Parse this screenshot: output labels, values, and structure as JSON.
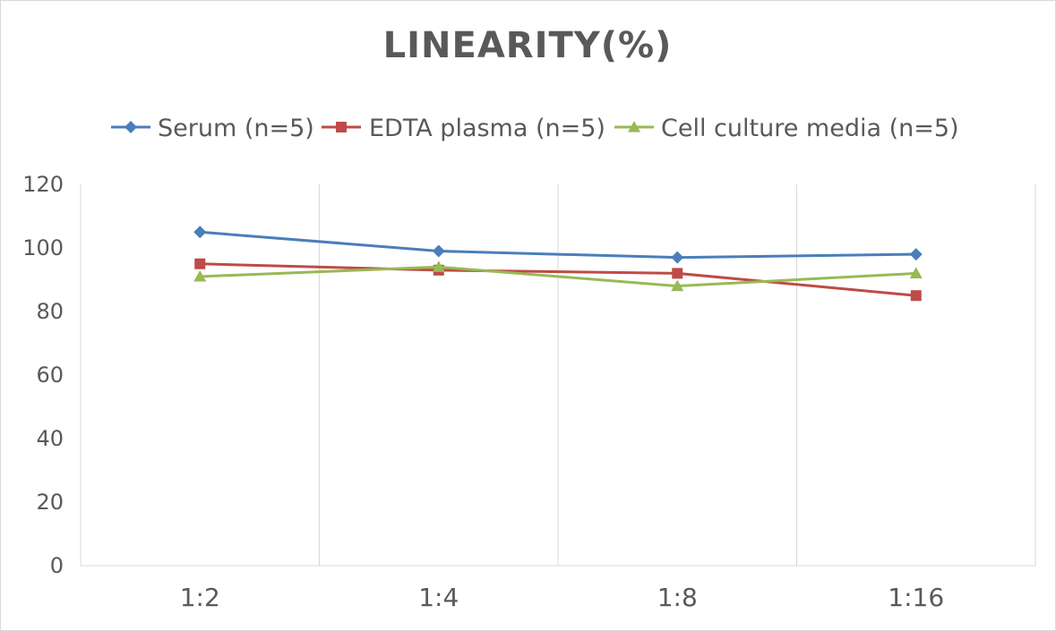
{
  "chart_data": {
    "type": "line",
    "title": "LINEARITY(%)",
    "xlabel": "",
    "ylabel": "",
    "categories": [
      "1:2",
      "1:4",
      "1:8",
      "1:16"
    ],
    "ylim": [
      0,
      120
    ],
    "yticks": [
      0,
      20,
      40,
      60,
      80,
      100,
      120
    ],
    "grid": "vertical",
    "legend_position": "top",
    "series": [
      {
        "name": "Serum (n=5)",
        "values": [
          105,
          99,
          97,
          98
        ],
        "color": "#4a7ebb",
        "marker": "diamond"
      },
      {
        "name": "EDTA plasma (n=5)",
        "values": [
          95,
          93,
          92,
          85
        ],
        "color": "#be4b48",
        "marker": "square"
      },
      {
        "name": "Cell culture media (n=5)",
        "values": [
          91,
          94,
          88,
          92
        ],
        "color": "#98b954",
        "marker": "triangle"
      }
    ]
  }
}
